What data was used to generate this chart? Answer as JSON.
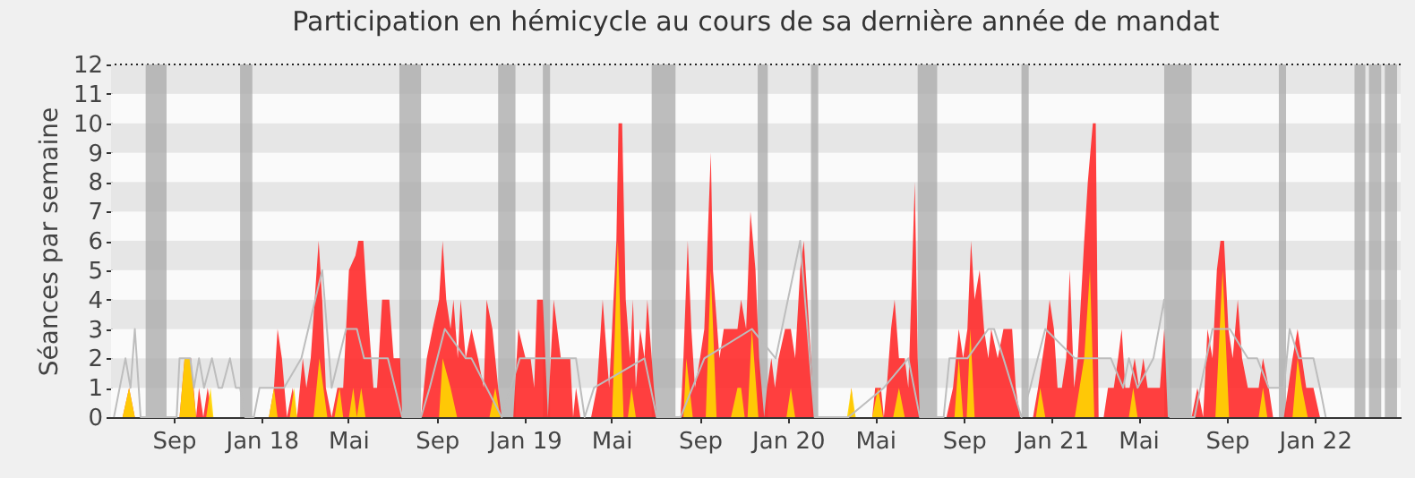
{
  "chart_data": {
    "type": "area",
    "title": "Participation en hémicycle au cours de sa dernière année de mandat",
    "ylabel": "Séances par semaine",
    "xlim": [
      "2017-06-20",
      "2022-05-14"
    ],
    "xticks": [
      {
        "value": "2017-09-15",
        "label": "Sep"
      },
      {
        "value": "2018-01-15",
        "label": "Jan 18"
      },
      {
        "value": "2018-05-15",
        "label": "Mai"
      },
      {
        "value": "2018-09-15",
        "label": "Sep"
      },
      {
        "value": "2019-01-15",
        "label": "Jan 19"
      },
      {
        "value": "2019-05-15",
        "label": "Mai"
      },
      {
        "value": "2019-09-15",
        "label": "Sep"
      },
      {
        "value": "2020-01-15",
        "label": "Jan 20"
      },
      {
        "value": "2020-05-15",
        "label": "Mai"
      },
      {
        "value": "2020-09-15",
        "label": "Sep"
      },
      {
        "value": "2021-01-15",
        "label": "Jan 21"
      },
      {
        "value": "2021-05-15",
        "label": "Mai"
      },
      {
        "value": "2021-09-15",
        "label": "Sep"
      },
      {
        "value": "2022-01-15",
        "label": "Jan 22"
      }
    ],
    "ylim": [
      0,
      12
    ],
    "yticks": [
      0,
      1,
      2,
      3,
      4,
      5,
      6,
      7,
      8,
      9,
      10,
      11,
      12
    ],
    "bands": [
      {
        "axis": "x",
        "from": "2017-08-07",
        "to": "2017-09-05",
        "color": "#a8a8a8"
      },
      {
        "axis": "x",
        "from": "2017-12-16",
        "to": "2018-01-02",
        "color": "#a8a8a8"
      },
      {
        "axis": "x",
        "from": "2018-07-25",
        "to": "2018-08-24",
        "color": "#a8a8a8"
      },
      {
        "axis": "x",
        "from": "2018-12-09",
        "to": "2019-01-02",
        "color": "#a8a8a8"
      },
      {
        "axis": "x",
        "from": "2019-02-09",
        "to": "2019-02-19",
        "color": "#a8a8a8"
      },
      {
        "axis": "x",
        "from": "2019-07-10",
        "to": "2019-08-12",
        "color": "#a8a8a8"
      },
      {
        "axis": "x",
        "from": "2019-12-04",
        "to": "2019-12-18",
        "color": "#a8a8a8"
      },
      {
        "axis": "x",
        "from": "2020-02-16",
        "to": "2020-02-26",
        "color": "#a8a8a8"
      },
      {
        "axis": "x",
        "from": "2020-07-13",
        "to": "2020-08-09",
        "color": "#a8a8a8"
      },
      {
        "axis": "x",
        "from": "2020-12-04",
        "to": "2020-12-14",
        "color": "#a8a8a8"
      },
      {
        "axis": "x",
        "from": "2021-06-20",
        "to": "2021-07-28",
        "color": "#a8a8a8"
      },
      {
        "axis": "x",
        "from": "2021-11-26",
        "to": "2021-12-06",
        "color": "#a8a8a8"
      },
      {
        "axis": "x",
        "from": "2022-03-11",
        "to": "2022-03-26",
        "color": "#a8a8a8"
      },
      {
        "axis": "x",
        "from": "2022-03-31",
        "to": "2022-04-17",
        "color": "#a8a8a8"
      },
      {
        "axis": "x",
        "from": "2022-04-22",
        "to": "2022-05-09",
        "color": "#a8a8a8"
      }
    ],
    "series": [
      {
        "type": "line",
        "color": "#bdbdbd",
        "x": [
          "2017-06-24",
          "2017-07-10",
          "2017-07-17",
          "2017-07-23",
          "2017-07-31",
          "2017-09-19",
          "2017-09-23",
          "2017-10-08",
          "2017-10-13",
          "2017-10-20",
          "2017-10-27",
          "2017-11-07",
          "2017-11-16",
          "2017-11-21",
          "2017-12-02",
          "2017-12-10",
          "2017-12-16",
          "2017-12-23",
          "2018-01-04",
          "2018-01-12",
          "2018-01-25",
          "2018-02-15",
          "2018-03-11",
          "2018-04-09",
          "2018-04-22",
          "2018-05-12",
          "2018-05-27",
          "2018-06-06",
          "2018-06-19",
          "2018-07-09",
          "2018-07-29",
          "2018-08-24",
          "2018-09-05",
          "2018-09-26",
          "2018-10-25",
          "2018-11-02",
          "2018-12-14",
          "2019-01-08",
          "2019-03-06",
          "2019-03-19",
          "2019-03-27",
          "2019-04-08",
          "2019-04-21",
          "2019-06-30",
          "2019-07-17",
          "2019-08-19",
          "2019-09-21",
          "2019-11-26",
          "2019-12-29",
          "2020-02-01",
          "2020-02-21",
          "2020-04-08",
          "2020-05-27",
          "2020-06-30",
          "2020-07-16",
          "2020-08-18",
          "2020-08-26",
          "2020-09-20",
          "2020-10-19",
          "2020-10-27",
          "2020-11-09",
          "2020-12-04",
          "2020-12-16",
          "2021-01-06",
          "2021-02-16",
          "2021-04-07",
          "2021-04-24",
          "2021-05-02",
          "2021-05-14",
          "2021-06-05",
          "2021-06-20",
          "2021-06-28",
          "2021-08-01",
          "2021-08-09",
          "2021-08-26",
          "2021-09-19",
          "2021-10-14",
          "2021-10-27",
          "2021-11-12",
          "2021-12-03",
          "2021-12-11",
          "2021-12-24",
          "2022-01-13",
          "2022-01-22",
          "2022-01-30"
        ],
        "values": [
          0,
          2,
          1,
          3,
          0,
          0,
          2,
          2,
          1,
          2,
          1,
          2,
          1,
          1,
          2,
          1,
          1,
          0,
          0,
          1,
          1,
          1,
          2,
          5,
          1,
          3,
          3,
          2,
          2,
          2,
          0,
          0,
          1,
          3,
          2,
          2,
          0,
          2,
          2,
          2,
          2,
          0,
          1,
          2,
          0,
          0,
          2,
          3,
          2,
          6,
          0,
          0,
          1,
          2,
          0,
          0,
          2,
          2,
          3,
          3,
          2,
          0,
          1,
          3,
          2,
          2,
          1,
          2,
          1,
          2,
          4,
          0,
          0,
          1,
          3,
          3,
          2,
          2,
          1,
          1,
          3,
          2,
          2,
          1,
          0
        ]
      },
      {
        "color": "#ff2a2a",
        "x": [
          "2017-07-06",
          "2017-07-15",
          "2017-07-23",
          "2017-09-23",
          "2017-09-30",
          "2017-10-09",
          "2017-10-16",
          "2017-10-20",
          "2017-10-26",
          "2017-11-01",
          "2017-11-08",
          "2018-01-25",
          "2018-02-01",
          "2018-02-06",
          "2018-02-12",
          "2018-02-19",
          "2018-02-27",
          "2018-03-05",
          "2018-03-13",
          "2018-03-18",
          "2018-03-24",
          "2018-04-04",
          "2018-04-09",
          "2018-04-14",
          "2018-04-22",
          "2018-04-30",
          "2018-05-08",
          "2018-05-16",
          "2018-05-25",
          "2018-05-29",
          "2018-06-05",
          "2018-06-10",
          "2018-06-19",
          "2018-06-24",
          "2018-07-01",
          "2018-07-11",
          "2018-07-17",
          "2018-07-26",
          "2018-07-29",
          "2018-08-24",
          "2018-09-01",
          "2018-09-09",
          "2018-09-18",
          "2018-09-23",
          "2018-09-28",
          "2018-10-04",
          "2018-10-08",
          "2018-10-14",
          "2018-10-18",
          "2018-10-25",
          "2018-11-02",
          "2018-11-11",
          "2018-11-19",
          "2018-11-23",
          "2018-12-01",
          "2018-12-09",
          "2018-12-14",
          "2018-12-30",
          "2019-01-06",
          "2019-01-16",
          "2019-01-23",
          "2019-01-28",
          "2019-02-01",
          "2019-02-09",
          "2019-02-16",
          "2019-02-24",
          "2019-03-06",
          "2019-03-19",
          "2019-03-23",
          "2019-03-27",
          "2019-04-02",
          "2019-04-17",
          "2019-04-25",
          "2019-05-03",
          "2019-05-12",
          "2019-05-22",
          "2019-05-25",
          "2019-05-30",
          "2019-06-04",
          "2019-06-10",
          "2019-06-14",
          "2019-06-18",
          "2019-06-24",
          "2019-06-30",
          "2019-07-04",
          "2019-07-13",
          "2019-07-17",
          "2019-08-19",
          "2019-08-23",
          "2019-08-29",
          "2019-09-03",
          "2019-09-08",
          "2019-09-15",
          "2019-09-21",
          "2019-09-30",
          "2019-10-03",
          "2019-10-12",
          "2019-10-18",
          "2019-10-24",
          "2019-11-06",
          "2019-11-11",
          "2019-11-18",
          "2019-11-24",
          "2019-12-01",
          "2019-12-06",
          "2019-12-13",
          "2019-12-17",
          "2019-12-23",
          "2019-12-28",
          "2020-01-02",
          "2020-01-11",
          "2020-01-19",
          "2020-01-25",
          "2020-02-01",
          "2020-02-06",
          "2020-02-11",
          "2020-02-16",
          "2020-02-21",
          "2020-04-08",
          "2020-04-12",
          "2020-04-16",
          "2020-05-11",
          "2020-05-15",
          "2020-05-23",
          "2020-05-27",
          "2020-05-31",
          "2020-06-06",
          "2020-06-11",
          "2020-06-17",
          "2020-06-25",
          "2020-06-30",
          "2020-07-04",
          "2020-07-09",
          "2020-07-13",
          "2020-07-16",
          "2020-08-22",
          "2020-08-31",
          "2020-09-08",
          "2020-09-14",
          "2020-09-20",
          "2020-09-25",
          "2020-09-30",
          "2020-10-07",
          "2020-10-13",
          "2020-10-19",
          "2020-10-23",
          "2020-11-01",
          "2020-11-09",
          "2020-11-21",
          "2020-11-26",
          "2020-12-02",
          "2020-12-20",
          "2020-12-27",
          "2021-01-02",
          "2021-01-08",
          "2021-01-12",
          "2021-01-18",
          "2021-01-23",
          "2021-01-29",
          "2021-02-04",
          "2021-02-09",
          "2021-02-15",
          "2021-02-20",
          "2021-03-01",
          "2021-03-06",
          "2021-03-13",
          "2021-03-17",
          "2021-03-21",
          "2021-03-28",
          "2021-04-03",
          "2021-04-11",
          "2021-04-17",
          "2021-04-22",
          "2021-04-27",
          "2021-05-03",
          "2021-05-10",
          "2021-05-16",
          "2021-05-22",
          "2021-05-28",
          "2021-06-14",
          "2021-06-20",
          "2021-06-25",
          "2021-07-28",
          "2021-08-05",
          "2021-08-13",
          "2021-08-19",
          "2021-08-26",
          "2021-09-01",
          "2021-09-06",
          "2021-09-11",
          "2021-09-17",
          "2021-09-23",
          "2021-09-30",
          "2021-10-06",
          "2021-10-14",
          "2021-10-29",
          "2021-11-04",
          "2021-11-12",
          "2021-11-18",
          "2021-12-03",
          "2021-12-09",
          "2021-12-15",
          "2021-12-22",
          "2021-12-28",
          "2022-01-03",
          "2022-01-13",
          "2022-01-22"
        ],
        "values": [
          0,
          1,
          0,
          0,
          2,
          2,
          0,
          1,
          0,
          1,
          0,
          0,
          1,
          3,
          2,
          0,
          1,
          0,
          2,
          1,
          2,
          6,
          4,
          1,
          0,
          1,
          1,
          5,
          5.5,
          6,
          6,
          4,
          1,
          1,
          4,
          4,
          2,
          2,
          0,
          0,
          2,
          3,
          4,
          6,
          4,
          3,
          4,
          2,
          4,
          2,
          3,
          2,
          1,
          4,
          3,
          1,
          0,
          0,
          3,
          2,
          2,
          1,
          4,
          4,
          0,
          4,
          2,
          2,
          0,
          1,
          0,
          0,
          1,
          4,
          1,
          6,
          10,
          10,
          4,
          2,
          4,
          1,
          3,
          2,
          4,
          1,
          0,
          0,
          2,
          6,
          3,
          1,
          2,
          3,
          9,
          5,
          2,
          3,
          3,
          3,
          4,
          3,
          7,
          5,
          2,
          0,
          1,
          2,
          1,
          2,
          3,
          3,
          2,
          5,
          6,
          4,
          2,
          0,
          0,
          1,
          0,
          0,
          1,
          1,
          0,
          1,
          3,
          4,
          2,
          2,
          1,
          4,
          8,
          2,
          0,
          0,
          1,
          3,
          2,
          3,
          6,
          4,
          5,
          3,
          2,
          3,
          2,
          3,
          3,
          1,
          0,
          0,
          1,
          2,
          3,
          4,
          3,
          1,
          1,
          2,
          5,
          1,
          2,
          6,
          8,
          10,
          10,
          0,
          0,
          1,
          1,
          2,
          3,
          1,
          1,
          2,
          1,
          2,
          1,
          1,
          3,
          0,
          0,
          1,
          0,
          3,
          2,
          5,
          6,
          6,
          3,
          2,
          4,
          2,
          1,
          1,
          2,
          1,
          0,
          0,
          1,
          2,
          3,
          2,
          1,
          1,
          0
        ]
      },
      {
        "color": "#ffd700",
        "x": [
          "2017-07-06",
          "2017-07-15",
          "2017-07-23",
          "2017-09-23",
          "2017-09-30",
          "2017-10-08",
          "2017-10-16",
          "2017-10-30",
          "2017-11-05",
          "2017-11-09",
          "2018-01-25",
          "2018-02-01",
          "2018-02-06",
          "2018-02-23",
          "2018-03-01",
          "2018-03-05",
          "2018-03-28",
          "2018-04-05",
          "2018-04-16",
          "2018-04-26",
          "2018-05-03",
          "2018-05-08",
          "2018-05-16",
          "2018-05-22",
          "2018-05-27",
          "2018-06-02",
          "2018-06-08",
          "2018-09-18",
          "2018-09-23",
          "2018-10-04",
          "2018-10-13",
          "2018-11-27",
          "2018-12-05",
          "2018-12-12",
          "2019-05-16",
          "2019-05-24",
          "2019-06-01",
          "2019-06-07",
          "2019-06-12",
          "2019-06-18",
          "2019-08-23",
          "2019-08-27",
          "2019-09-05",
          "2019-09-23",
          "2019-09-30",
          "2019-10-08",
          "2019-10-28",
          "2019-11-06",
          "2019-11-11",
          "2019-11-16",
          "2019-11-20",
          "2019-11-26",
          "2019-12-05",
          "2020-01-13",
          "2020-01-19",
          "2020-01-25",
          "2020-04-06",
          "2020-04-12",
          "2020-04-18",
          "2020-05-11",
          "2020-05-19",
          "2020-05-26",
          "2020-06-09",
          "2020-06-17",
          "2020-06-25",
          "2020-09-02",
          "2020-09-08",
          "2020-09-14",
          "2020-09-19",
          "2020-09-24",
          "2020-09-30",
          "2020-12-24",
          "2020-12-30",
          "2021-01-06",
          "2021-02-16",
          "2021-03-01",
          "2021-03-09",
          "2021-03-15",
          "2021-05-02",
          "2021-05-08",
          "2021-05-14",
          "2021-08-30",
          "2021-09-09",
          "2021-09-18",
          "2021-10-29",
          "2021-11-04",
          "2021-11-10",
          "2021-12-15",
          "2021-12-22",
          "2021-12-28",
          "2022-01-05"
        ],
        "values": [
          0,
          1,
          0,
          0,
          2,
          2,
          0,
          0,
          1,
          0,
          0,
          1,
          0,
          0,
          1,
          0,
          0,
          2,
          0,
          0,
          1,
          0,
          0,
          1,
          0,
          1,
          0,
          0,
          2,
          1,
          0,
          0,
          1,
          0,
          0,
          6,
          0,
          0,
          1,
          0,
          0,
          2,
          0,
          0,
          5,
          0,
          0,
          1,
          1,
          0,
          0,
          3,
          0,
          0,
          1,
          0,
          0,
          1,
          0,
          0,
          1,
          0,
          0,
          1,
          0,
          0,
          2,
          0,
          0,
          3,
          0,
          0,
          1,
          0,
          0,
          2,
          5,
          0,
          0,
          1,
          0,
          0,
          5,
          0,
          0,
          1,
          0,
          0,
          2,
          1,
          0
        ]
      }
    ]
  }
}
